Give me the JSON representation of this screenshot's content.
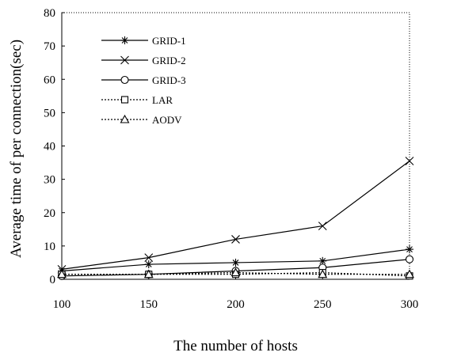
{
  "chart_data": {
    "type": "line",
    "title": "",
    "xlabel": "The number of hosts",
    "ylabel": "Average time of per connection(sec)",
    "x": [
      100,
      150,
      200,
      250,
      300
    ],
    "xlim": [
      100,
      300
    ],
    "ylim": [
      0,
      80
    ],
    "xticks": [
      "100",
      "150",
      "200",
      "250",
      "300"
    ],
    "yticks": [
      "0",
      "10",
      "20",
      "30",
      "40",
      "50",
      "60",
      "70",
      "80"
    ],
    "grid": false,
    "legend_position": "top-left",
    "series": [
      {
        "name": "GRID-1",
        "values": [
          2.5,
          4.5,
          5.0,
          5.5,
          9.0
        ],
        "marker": "asterisk",
        "dash": "solid"
      },
      {
        "name": "GRID-2",
        "values": [
          3.0,
          6.5,
          12.0,
          16.0,
          35.5
        ],
        "marker": "x",
        "dash": "solid"
      },
      {
        "name": "GRID-3",
        "values": [
          1.0,
          1.5,
          2.5,
          3.5,
          6.0
        ],
        "marker": "circle",
        "dash": "solid"
      },
      {
        "name": "LAR",
        "values": [
          1.5,
          1.5,
          1.5,
          2.0,
          1.0
        ],
        "marker": "square",
        "dash": "dotted"
      },
      {
        "name": "AODV",
        "values": [
          1.5,
          1.5,
          2.0,
          1.5,
          1.5
        ],
        "marker": "triangle",
        "dash": "dotted"
      }
    ]
  }
}
